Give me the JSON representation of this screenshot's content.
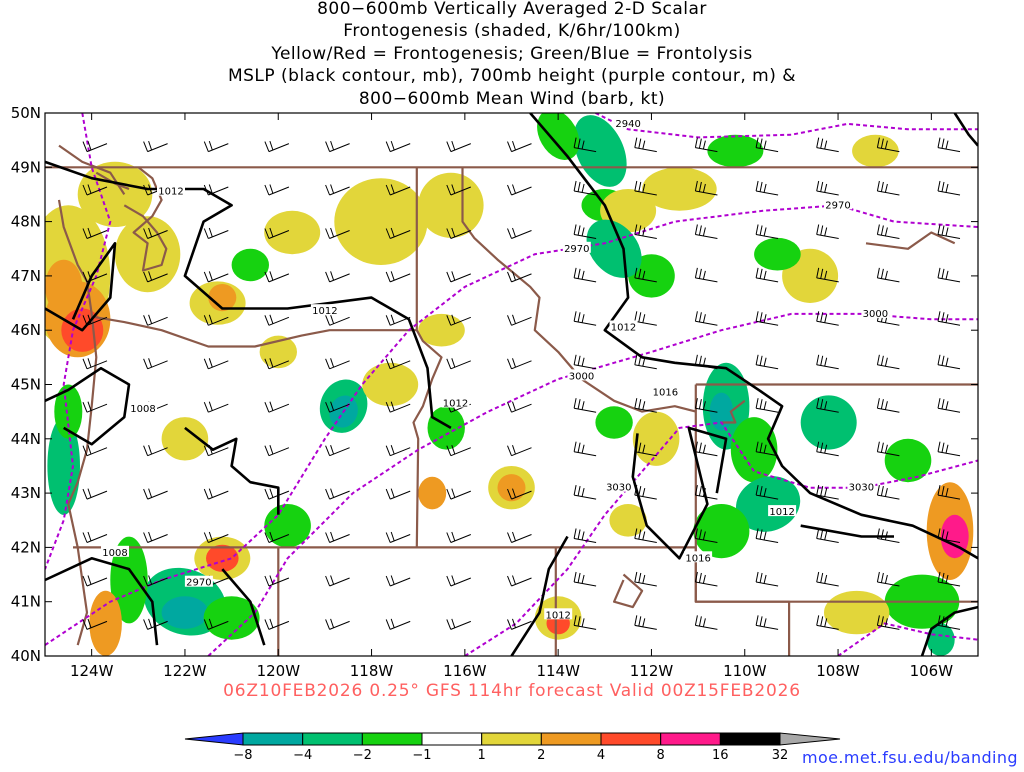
{
  "title_lines": [
    "800−600mb Vertically Averaged 2-D Scalar",
    "Frontogenesis (shaded, K/6hr/100km)",
    "Yellow/Red = Frontogenesis;  Green/Blue = Frontolysis",
    "MSLP (black contour, mb), 700mb height (purple contour, m) &",
    "800−600mb Mean Wind (barb, kt)"
  ],
  "footer": "06Z10FEB2026 0.25° GFS 114hr forecast Valid 00Z15FEB2026",
  "credit": "moe.met.fsu.edu/banding",
  "axes": {
    "lat_labels": [
      "50N",
      "49N",
      "48N",
      "47N",
      "46N",
      "45N",
      "44N",
      "43N",
      "42N",
      "41N",
      "40N"
    ],
    "lon_labels": [
      "124W",
      "122W",
      "120W",
      "118W",
      "116W",
      "114W",
      "112W",
      "110W",
      "108W",
      "106W"
    ],
    "lat_range": [
      40,
      50
    ],
    "lon_range": [
      -125,
      -105
    ]
  },
  "contour_labels": {
    "mslp": [
      {
        "text": "1012",
        "lon": -122.3,
        "lat": 48.55
      },
      {
        "text": "1012",
        "lon": -119.0,
        "lat": 46.35
      },
      {
        "text": "1012",
        "lon": -116.2,
        "lat": 44.65
      },
      {
        "text": "1012",
        "lon": -112.6,
        "lat": 46.05
      },
      {
        "text": "1016",
        "lon": -111.7,
        "lat": 44.85
      },
      {
        "text": "1008",
        "lon": -122.9,
        "lat": 44.55
      },
      {
        "text": "1008",
        "lon": -123.5,
        "lat": 41.9
      },
      {
        "text": "1012",
        "lon": -109.2,
        "lat": 42.65
      },
      {
        "text": "1016",
        "lon": -111.0,
        "lat": 41.8
      },
      {
        "text": "1012",
        "lon": -114.0,
        "lat": 40.75
      }
    ],
    "hgt700": [
      {
        "text": "2940",
        "lon": -112.5,
        "lat": 49.8
      },
      {
        "text": "2970",
        "lon": -108.0,
        "lat": 48.3
      },
      {
        "text": "2970",
        "lon": -113.6,
        "lat": 47.5
      },
      {
        "text": "3000",
        "lon": -107.2,
        "lat": 46.3
      },
      {
        "text": "3000",
        "lon": -113.5,
        "lat": 45.15
      },
      {
        "text": "3030",
        "lon": -112.7,
        "lat": 43.1
      },
      {
        "text": "3030",
        "lon": -107.5,
        "lat": 43.1
      },
      {
        "text": "2970",
        "lon": -121.7,
        "lat": 41.35
      }
    ]
  },
  "colorbar": {
    "labels": [
      "−8",
      "−4",
      "−2",
      "−1",
      "1",
      "2",
      "4",
      "8",
      "16",
      "32"
    ],
    "colors": [
      "#2a3cff",
      "#00a8a0",
      "#00c070",
      "#16d210",
      "#ffffff",
      "#e2d63a",
      "#ee9a22",
      "#ff4a2a",
      "#ff1a8a",
      "#000000",
      "#a8a8a8"
    ]
  },
  "colors": {
    "mslp_contour": "#000000",
    "height_contour": "#b000d0",
    "borders": "#8b5a4a",
    "wind_barb": "#000000"
  }
}
